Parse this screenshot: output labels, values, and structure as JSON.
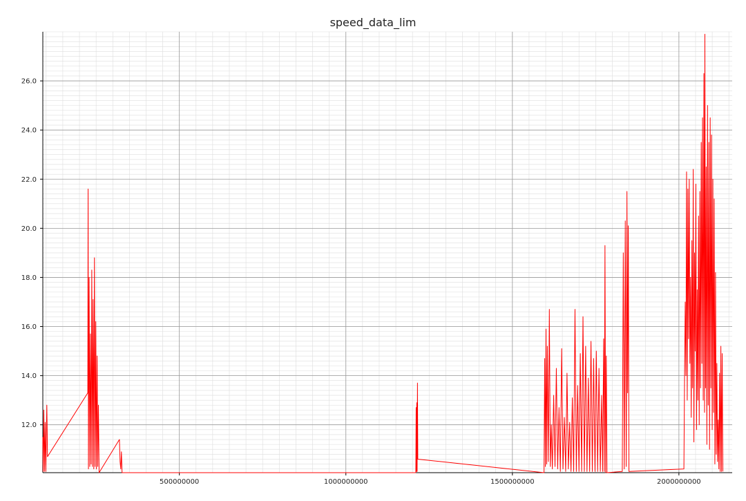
{
  "chart_data": {
    "type": "line",
    "title": "speed_data_lim",
    "xlabel": "",
    "ylabel": "",
    "xlim": [
      90000000,
      2160000000
    ],
    "ylim": [
      10.05,
      28.0
    ],
    "x_ticks": [
      500000000,
      1000000000,
      1500000000,
      2000000000
    ],
    "x_tick_labels": [
      "500000000",
      "1000000000",
      "1500000000",
      "2000000000"
    ],
    "y_ticks": [
      12.0,
      14.0,
      16.0,
      18.0,
      20.0,
      22.0,
      24.0,
      26.0
    ],
    "y_tick_labels": [
      "12.0",
      "14.0",
      "16.0",
      "18.0",
      "20.0",
      "22.0",
      "24.0",
      "26.0"
    ],
    "grid": true,
    "minor_grid": true,
    "legend": "none",
    "colors": {
      "line": "#ff0000",
      "major_grid": "#9a9a9a",
      "minor_grid": "#dddddd",
      "axis": "#000000"
    },
    "series": [
      {
        "color": "#ff0000",
        "points": [
          [
            90000000,
            11.5
          ],
          [
            91000000,
            10.1
          ],
          [
            93000000,
            12.6
          ],
          [
            95000000,
            10.1
          ],
          [
            97000000,
            12.1
          ],
          [
            99000000,
            10.1
          ],
          [
            102000000,
            12.8
          ],
          [
            104000000,
            10.7
          ],
          [
            225000000,
            13.3
          ],
          [
            226000000,
            21.6
          ],
          [
            227000000,
            10.2
          ],
          [
            229000000,
            18.0
          ],
          [
            231000000,
            10.3
          ],
          [
            233000000,
            15.7
          ],
          [
            235000000,
            10.4
          ],
          [
            237000000,
            18.3
          ],
          [
            239000000,
            10.3
          ],
          [
            241000000,
            17.1
          ],
          [
            243000000,
            10.2
          ],
          [
            245000000,
            18.8
          ],
          [
            247000000,
            10.3
          ],
          [
            249000000,
            16.2
          ],
          [
            251000000,
            10.2
          ],
          [
            253000000,
            14.8
          ],
          [
            255000000,
            10.3
          ],
          [
            257000000,
            12.8
          ],
          [
            259000000,
            10.05
          ],
          [
            320000000,
            11.4
          ],
          [
            322000000,
            10.5
          ],
          [
            324000000,
            10.2
          ],
          [
            326000000,
            10.9
          ],
          [
            328000000,
            10.05
          ],
          [
            700000000,
            10.05
          ],
          [
            1000000000,
            10.05
          ],
          [
            1210000000,
            10.05
          ],
          [
            1211000000,
            12.7
          ],
          [
            1212000000,
            10.1
          ],
          [
            1213000000,
            12.9
          ],
          [
            1214000000,
            10.1
          ],
          [
            1215000000,
            13.7
          ],
          [
            1216000000,
            10.6
          ],
          [
            1595000000,
            10.05
          ],
          [
            1597000000,
            14.7
          ],
          [
            1599000000,
            10.3
          ],
          [
            1601000000,
            15.9
          ],
          [
            1603000000,
            10.4
          ],
          [
            1605000000,
            15.2
          ],
          [
            1608000000,
            10.5
          ],
          [
            1611000000,
            16.7
          ],
          [
            1614000000,
            10.3
          ],
          [
            1617000000,
            12.0
          ],
          [
            1620000000,
            10.2
          ],
          [
            1624000000,
            13.2
          ],
          [
            1628000000,
            10.3
          ],
          [
            1632000000,
            14.3
          ],
          [
            1636000000,
            10.2
          ],
          [
            1640000000,
            12.7
          ],
          [
            1644000000,
            10.1
          ],
          [
            1648000000,
            15.1
          ],
          [
            1652000000,
            10.2
          ],
          [
            1656000000,
            12.3
          ],
          [
            1660000000,
            10.1
          ],
          [
            1664000000,
            14.1
          ],
          [
            1668000000,
            10.2
          ],
          [
            1672000000,
            12.1
          ],
          [
            1676000000,
            10.1
          ],
          [
            1680000000,
            13.1
          ],
          [
            1684000000,
            10.1
          ],
          [
            1688000000,
            16.7
          ],
          [
            1692000000,
            10.1
          ],
          [
            1696000000,
            13.6
          ],
          [
            1700000000,
            10.1
          ],
          [
            1704000000,
            14.9
          ],
          [
            1708000000,
            10.1
          ],
          [
            1712000000,
            16.4
          ],
          [
            1716000000,
            10.1
          ],
          [
            1720000000,
            15.2
          ],
          [
            1724000000,
            10.1
          ],
          [
            1728000000,
            13.9
          ],
          [
            1732000000,
            10.1
          ],
          [
            1736000000,
            15.4
          ],
          [
            1740000000,
            10.1
          ],
          [
            1744000000,
            14.7
          ],
          [
            1748000000,
            10.1
          ],
          [
            1752000000,
            15.0
          ],
          [
            1756000000,
            10.1
          ],
          [
            1760000000,
            14.3
          ],
          [
            1764000000,
            10.1
          ],
          [
            1768000000,
            13.2
          ],
          [
            1771000000,
            10.1
          ],
          [
            1774000000,
            15.5
          ],
          [
            1776000000,
            10.1
          ],
          [
            1778000000,
            19.3
          ],
          [
            1780000000,
            10.05
          ],
          [
            1782000000,
            14.8
          ],
          [
            1784000000,
            10.05
          ],
          [
            1830000000,
            10.1
          ],
          [
            1833000000,
            19.0
          ],
          [
            1836000000,
            10.2
          ],
          [
            1839000000,
            20.3
          ],
          [
            1842000000,
            10.3
          ],
          [
            1844000000,
            21.5
          ],
          [
            1846000000,
            13.3
          ],
          [
            1848000000,
            20.1
          ],
          [
            1850000000,
            10.1
          ],
          [
            2015000000,
            10.2
          ],
          [
            2017000000,
            14.0
          ],
          [
            2019000000,
            17.0
          ],
          [
            2021000000,
            14.0
          ],
          [
            2023000000,
            22.3
          ],
          [
            2025000000,
            13.0
          ],
          [
            2027000000,
            21.6
          ],
          [
            2029000000,
            15.5
          ],
          [
            2031000000,
            22.0
          ],
          [
            2033000000,
            14.5
          ],
          [
            2035000000,
            18.0
          ],
          [
            2037000000,
            12.3
          ],
          [
            2039000000,
            19.5
          ],
          [
            2041000000,
            13.5
          ],
          [
            2043000000,
            22.4
          ],
          [
            2045000000,
            11.3
          ],
          [
            2047000000,
            19.0
          ],
          [
            2049000000,
            15.0
          ],
          [
            2051000000,
            21.8
          ],
          [
            2053000000,
            11.8
          ],
          [
            2055000000,
            17.5
          ],
          [
            2057000000,
            13.0
          ],
          [
            2059000000,
            20.5
          ],
          [
            2061000000,
            12.0
          ],
          [
            2063000000,
            21.5
          ],
          [
            2065000000,
            13.5
          ],
          [
            2067000000,
            23.5
          ],
          [
            2069000000,
            14.5
          ],
          [
            2071000000,
            24.5
          ],
          [
            2073000000,
            13.0
          ],
          [
            2075000000,
            26.3
          ],
          [
            2077000000,
            12.5
          ],
          [
            2078000000,
            27.9
          ],
          [
            2080000000,
            13.5
          ],
          [
            2082000000,
            22.5
          ],
          [
            2084000000,
            11.2
          ],
          [
            2086000000,
            25.0
          ],
          [
            2088000000,
            12.8
          ],
          [
            2090000000,
            23.5
          ],
          [
            2092000000,
            11.0
          ],
          [
            2094000000,
            24.5
          ],
          [
            2096000000,
            13.5
          ],
          [
            2098000000,
            23.8
          ],
          [
            2100000000,
            11.8
          ],
          [
            2102000000,
            22.0
          ],
          [
            2104000000,
            12.5
          ],
          [
            2106000000,
            21.2
          ],
          [
            2108000000,
            10.4
          ],
          [
            2110000000,
            18.2
          ],
          [
            2112000000,
            10.8
          ],
          [
            2114000000,
            14.5
          ],
          [
            2116000000,
            10.5
          ],
          [
            2118000000,
            12.2
          ],
          [
            2120000000,
            10.2
          ],
          [
            2122000000,
            14.1
          ],
          [
            2124000000,
            10.1
          ],
          [
            2126000000,
            15.2
          ],
          [
            2128000000,
            10.1
          ],
          [
            2130000000,
            14.9
          ],
          [
            2132000000,
            10.1
          ]
        ]
      }
    ]
  }
}
